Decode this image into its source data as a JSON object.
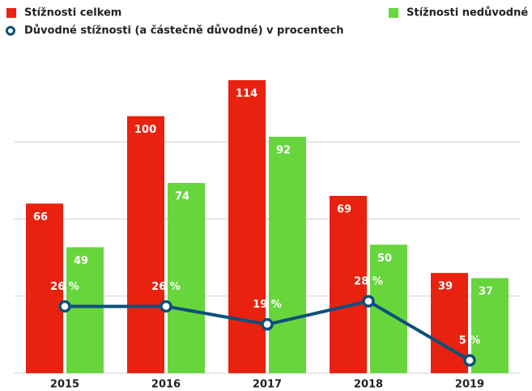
{
  "chart_data": {
    "type": "bar",
    "categories": [
      "2015",
      "2016",
      "2017",
      "2018",
      "2019"
    ],
    "series": [
      {
        "name": "Stížnosti celkem",
        "color": "#e8220e",
        "values": [
          66,
          100,
          114,
          69,
          39
        ]
      },
      {
        "name": "Stížnosti nedůvodné",
        "color": "#66d63c",
        "values": [
          49,
          74,
          92,
          50,
          37
        ]
      },
      {
        "name": "Důvodné stížnosti (a částečně důvodné) v procentech",
        "color": "#0d4f7c",
        "type": "line",
        "axis": "y2",
        "values": [
          26,
          26,
          19,
          28,
          5
        ],
        "value_labels": [
          "26 %",
          "26 %",
          "19 %",
          "28 %",
          "5 %"
        ]
      }
    ],
    "ylim": [
      0,
      120
    ],
    "yticks": [
      0,
      30,
      60,
      90
    ],
    "y2lim": [
      0,
      120
    ],
    "grid": true
  }
}
